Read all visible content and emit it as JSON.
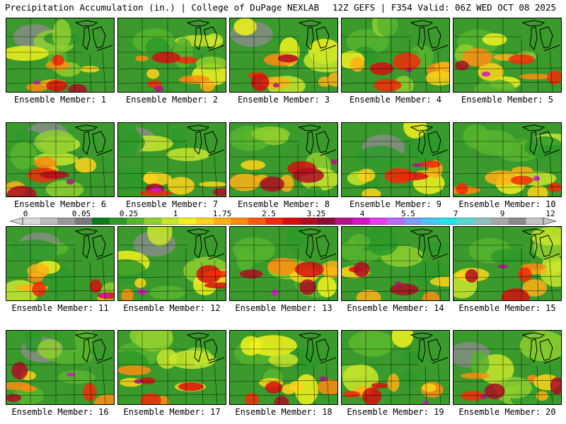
{
  "header": {
    "left": "Precipitation Accumulation (in.) | College of DuPage NEXLAB",
    "right": "12Z GEFS | F354 Valid: 06Z WED OCT 08 2025"
  },
  "members": [
    {
      "label": "Ensemble Member: 1"
    },
    {
      "label": "Ensemble Member: 2"
    },
    {
      "label": "Ensemble Member: 3"
    },
    {
      "label": "Ensemble Member: 4"
    },
    {
      "label": "Ensemble Member: 5"
    },
    {
      "label": "Ensemble Member: 6"
    },
    {
      "label": "Ensemble Member: 7"
    },
    {
      "label": "Ensemble Member: 8"
    },
    {
      "label": "Ensemble Member: 9"
    },
    {
      "label": "Ensemble Member: 10"
    },
    {
      "label": "Ensemble Member: 11"
    },
    {
      "label": "Ensemble Member: 12"
    },
    {
      "label": "Ensemble Member: 13"
    },
    {
      "label": "Ensemble Member: 14"
    },
    {
      "label": "Ensemble Member: 15"
    },
    {
      "label": "Ensemble Member: 16"
    },
    {
      "label": "Ensemble Member: 17"
    },
    {
      "label": "Ensemble Member: 18"
    },
    {
      "label": "Ensemble Member: 19"
    },
    {
      "label": "Ensemble Member: 20"
    }
  ],
  "legend": {
    "tick_labels": [
      "0",
      "0.05",
      "0.25",
      "1",
      "1.75",
      "2.5",
      "3.25",
      "4",
      "5.5",
      "7",
      "9",
      "12"
    ],
    "colors": [
      "#d8d8d8",
      "#bdbdbd",
      "#9a9a9a",
      "#7a7a7a",
      "#0f7a1c",
      "#2e9a2a",
      "#58b52e",
      "#8fcf2f",
      "#c9e62b",
      "#f2f21e",
      "#ffd31a",
      "#ffb015",
      "#ff8c10",
      "#ff5a0c",
      "#f52a08",
      "#d80e0e",
      "#b00d22",
      "#8a0b36",
      "#b3128c",
      "#d416c8",
      "#e63ef0",
      "#b86af8",
      "#7b9cf8",
      "#45c8f5",
      "#21e6e8",
      "#5ad8d0",
      "#8ec0bc",
      "#a8a8a8",
      "#8a8a8a",
      "#c4c4c4"
    ]
  }
}
